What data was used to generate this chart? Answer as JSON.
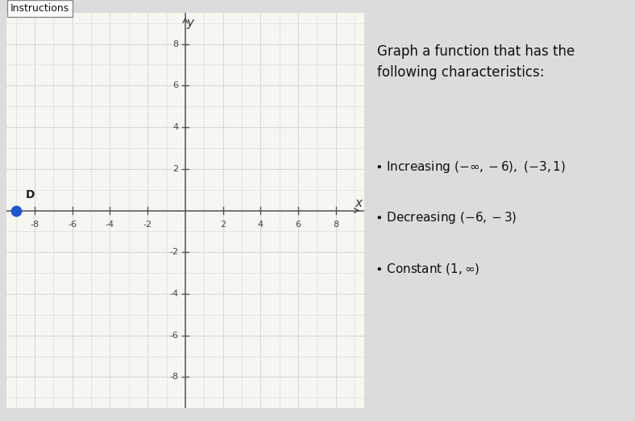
{
  "title": "Instructions",
  "xlim": [
    -9.5,
    9.5
  ],
  "ylim": [
    -9.5,
    9.5
  ],
  "xticks": [
    -8,
    -6,
    -4,
    -2,
    2,
    4,
    6,
    8
  ],
  "yticks": [
    -8,
    -6,
    -4,
    -2,
    2,
    4,
    6,
    8
  ],
  "grid_minor_color": "#d8d8d8",
  "grid_major_color": "#bbbbbb",
  "axis_color": "#555555",
  "graph_bg": "#f7f7f2",
  "right_bg": "#f0eeee",
  "outer_bg": "#dcdcdc",
  "function_color": "#2255cc",
  "dot_color": "#2255cc",
  "dot_x": -9,
  "dot_y": 0,
  "dot_label": "D",
  "right_title": "Graph a function that has the\nfollowing characteristics:",
  "bullet1": "Increasing $(-\\infty, -6),\\ (-3, 1)$",
  "bullet2": "Decreasing $(-6, -3)$",
  "bullet3": "Constant $(1, \\infty)$",
  "title_fontsize": 12,
  "bullet_fontsize": 11,
  "tick_fontsize": 8
}
